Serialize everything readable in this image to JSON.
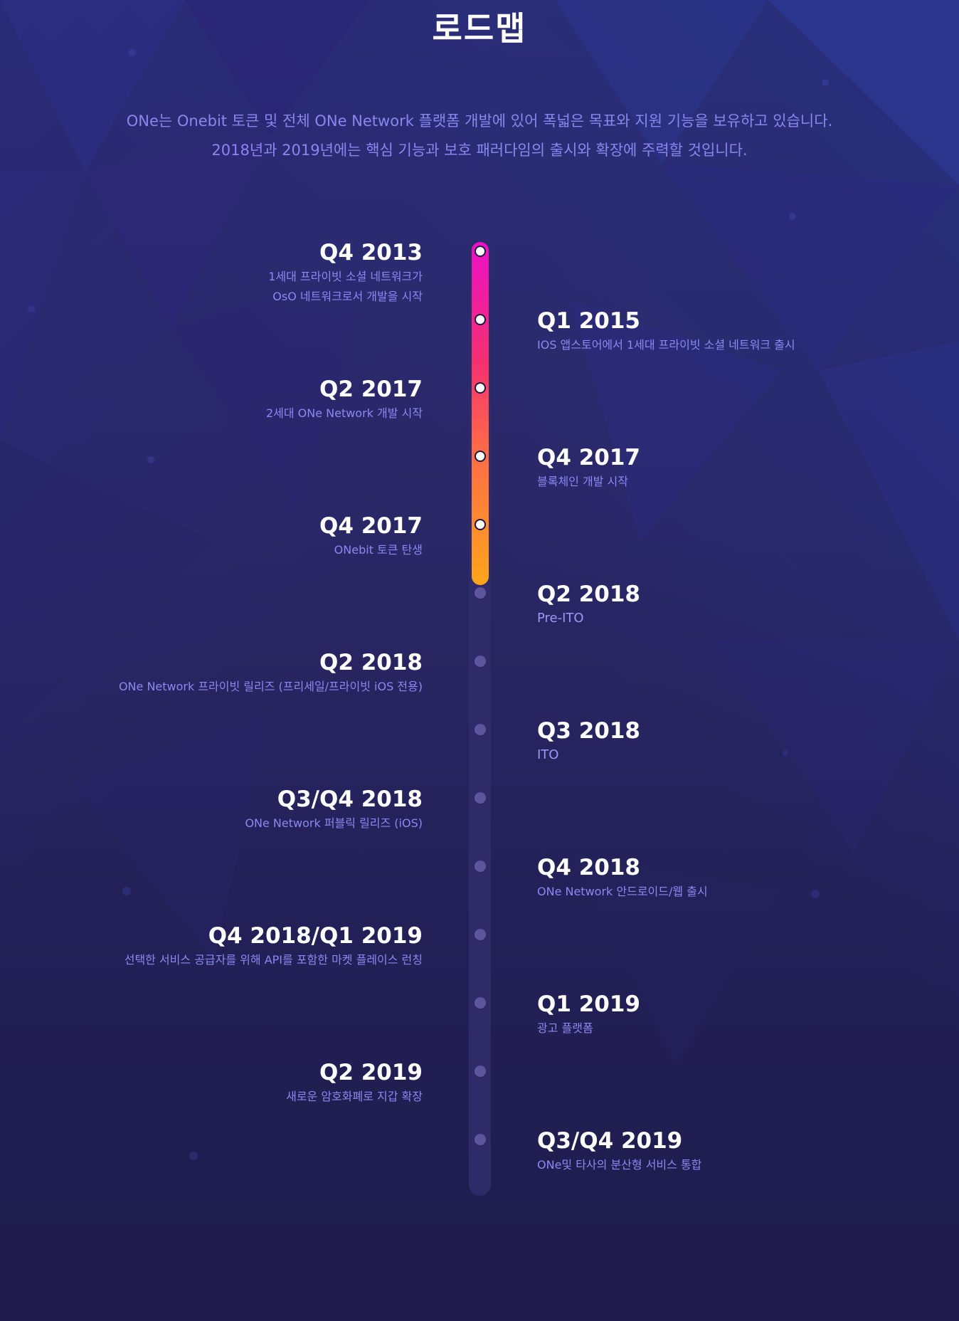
{
  "page": {
    "title": "로드맵",
    "intro_line1": "ONe는 Onebit 토큰 및 전체 ONe Network 플랫폼 개발에 있어 폭넓은 목표와 지원 기능을 보유하고 있습니다.",
    "intro_line2": "2018년과 2019년에는 핵심 기능과 보호 패러다임의 출시와 확장에 주력할 것입니다."
  },
  "colors": {
    "background": "#232052",
    "title": "#ffffff",
    "accent_text": "#8a86ee",
    "progress_start": "#ec10c9",
    "progress_end": "#ffa51a",
    "track": "#2f2b68",
    "pending_dot": "#5d569c"
  },
  "roadmap": {
    "completed_fraction": 0.36,
    "milestones": [
      {
        "side": "left",
        "quarter": "Q4 2013",
        "desc": [
          "1세대 프라이빗 소셜 네트워크가",
          "OsO 네트워크로서 개발을 시작"
        ],
        "done": true
      },
      {
        "side": "right",
        "quarter": "Q1 2015",
        "desc": [
          "IOS 앱스토어에서 1세대 프라이빗 소셜 네트워크 출시"
        ],
        "done": true
      },
      {
        "side": "left",
        "quarter": "Q2 2017",
        "desc": [
          "2세대 ONe Network 개발 시작"
        ],
        "done": true
      },
      {
        "side": "right",
        "quarter": "Q4 2017",
        "desc": [
          "블록체인 개발 시작"
        ],
        "done": true
      },
      {
        "side": "left",
        "quarter": "Q4 2017",
        "desc": [
          "ONebit 토큰 탄생"
        ],
        "done": true
      },
      {
        "side": "right",
        "quarter": "Q2 2018",
        "desc": [
          "Pre-ITO"
        ],
        "done": false
      },
      {
        "side": "left",
        "quarter": "Q2 2018",
        "desc": [
          "ONe Network 프라이빗 릴리즈 (프리세일/프라이빗 iOS 전용)"
        ],
        "done": false
      },
      {
        "side": "right",
        "quarter": "Q3 2018",
        "desc": [
          "ITO"
        ],
        "done": false
      },
      {
        "side": "left",
        "quarter": "Q3/Q4 2018",
        "desc": [
          "ONe Network 퍼블릭 릴리즈 (iOS)"
        ],
        "done": false
      },
      {
        "side": "right",
        "quarter": "Q4 2018",
        "desc": [
          "ONe Network 안드로이드/웹 출시"
        ],
        "done": false
      },
      {
        "side": "left",
        "quarter": "Q4 2018/Q1 2019",
        "desc": [
          "선택한 서비스 공급자를 위해 API를 포함한 마켓 플레이스 런칭"
        ],
        "done": false
      },
      {
        "side": "right",
        "quarter": "Q1 2019",
        "desc": [
          "광고 플랫폼"
        ],
        "done": false
      },
      {
        "side": "left",
        "quarter": "Q2 2019",
        "desc": [
          "새로운 암호화폐로 지갑 확장"
        ],
        "done": false
      },
      {
        "side": "right",
        "quarter": "Q3/Q4 2019",
        "desc": [
          "ONe및 타사의 분산형 서비스 통합"
        ],
        "done": false
      }
    ]
  }
}
